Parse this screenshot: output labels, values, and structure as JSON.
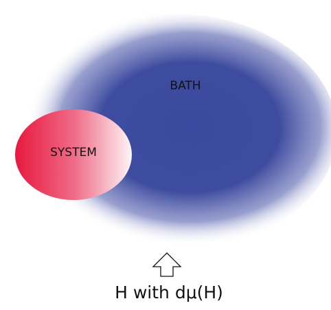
{
  "nodes": [
    {
      "label": "BATH"
    },
    {
      "label": "SYSTEM"
    }
  ],
  "arrow_label": "H with dμ(H)"
}
